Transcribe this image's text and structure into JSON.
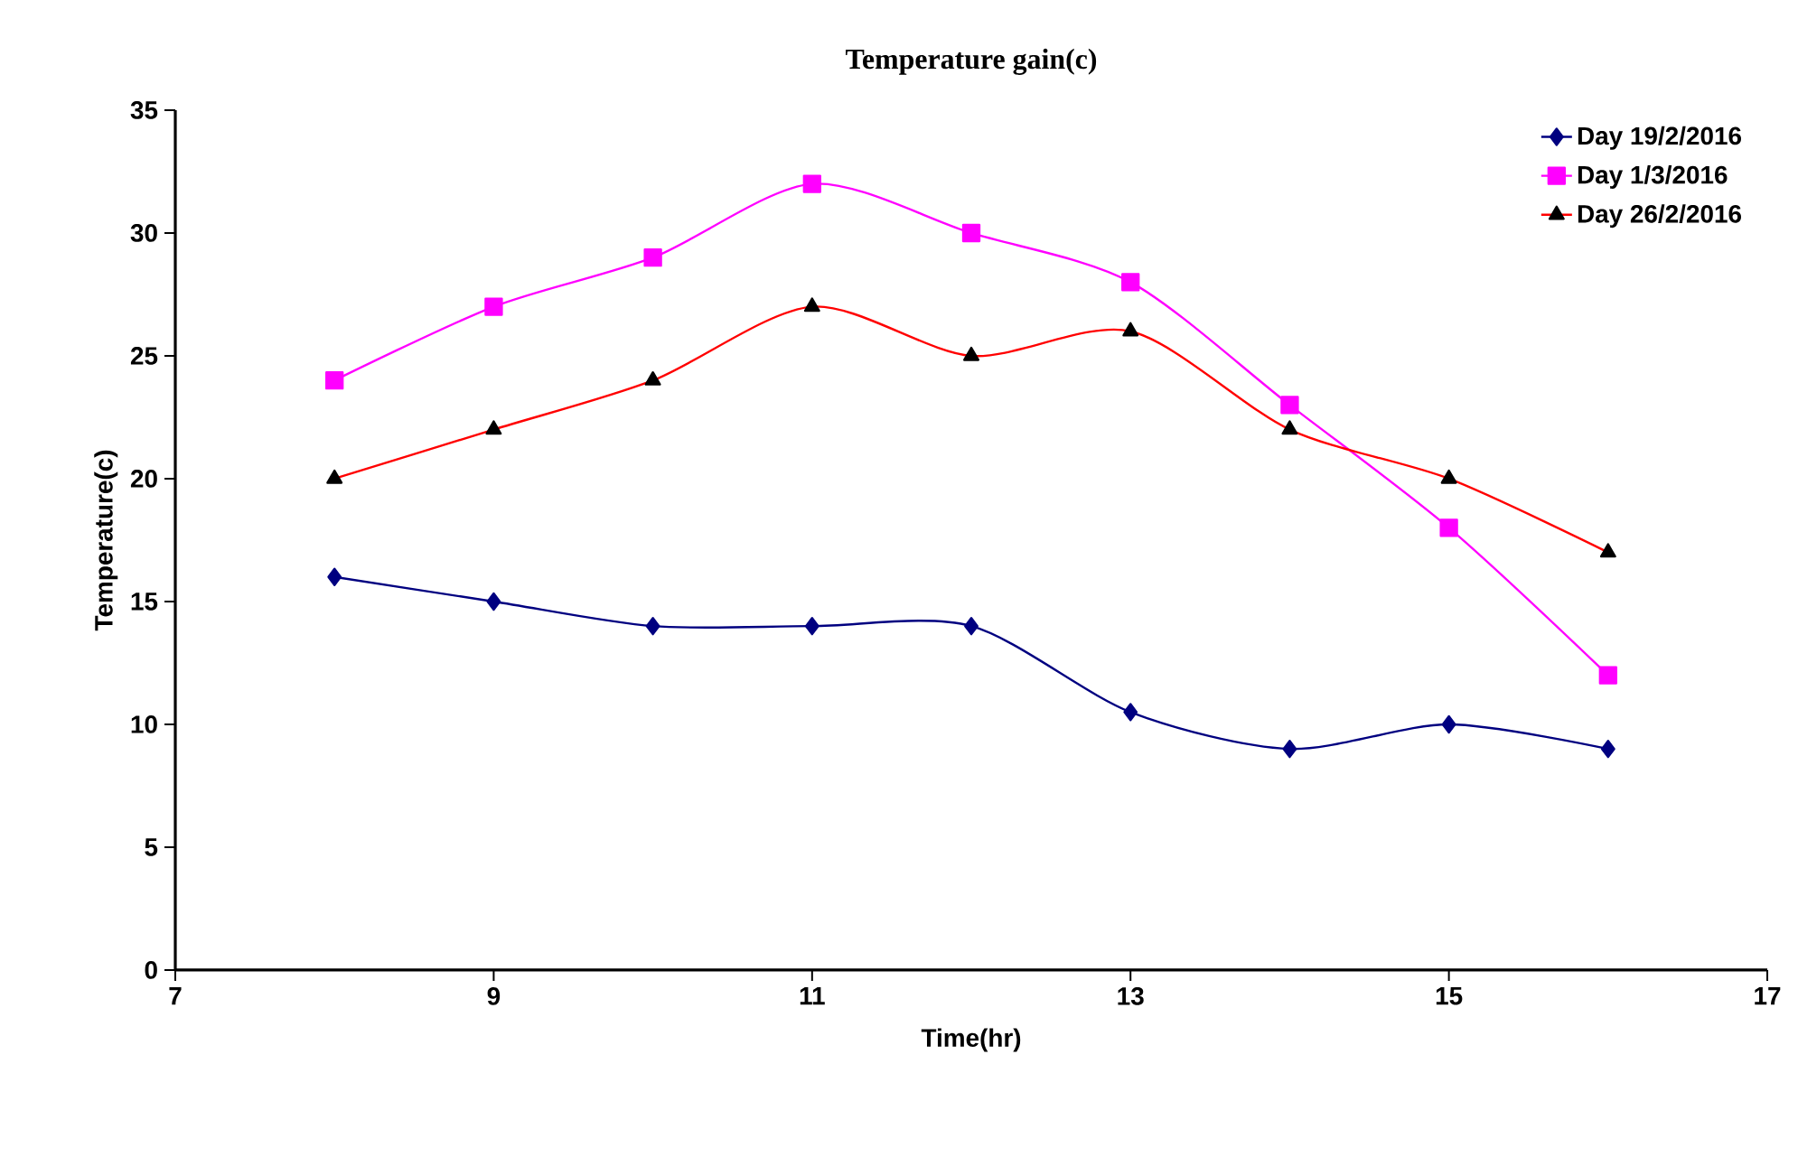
{
  "chart_data": {
    "type": "line",
    "title": "Temperature gain(c)",
    "xlabel": "Time(hr)",
    "ylabel": "Temperature(c)",
    "x": [
      8,
      9,
      10,
      11,
      12,
      13,
      14,
      15,
      16
    ],
    "series": [
      {
        "name": "Day 19/2/2016",
        "color": "#000080",
        "marker": "diamond",
        "values": [
          16,
          15,
          14,
          14,
          14,
          10.5,
          9,
          10,
          9
        ]
      },
      {
        "name": "Day 1/3/2016",
        "color": "#ff00ff",
        "marker": "square",
        "values": [
          24,
          27,
          29,
          32,
          30,
          28,
          23,
          18,
          12
        ]
      },
      {
        "name": "Day 26/2/2016",
        "color": "#ff0000",
        "marker": "triangle",
        "values": [
          20,
          22,
          24,
          27,
          25,
          26,
          22,
          20,
          17
        ]
      }
    ],
    "xlim": [
      7,
      17
    ],
    "xticks": [
      7,
      9,
      11,
      13,
      15,
      17
    ],
    "ylim": [
      0,
      35
    ],
    "yticks": [
      0,
      5,
      10,
      15,
      20,
      25,
      30,
      35
    ],
    "grid": false,
    "legend": "top right",
    "line_style": "solid"
  }
}
